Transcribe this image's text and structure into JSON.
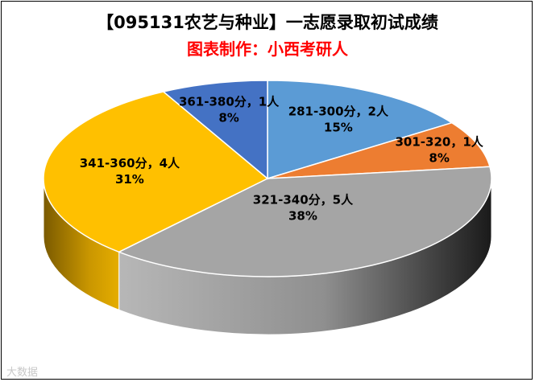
{
  "chart_data": {
    "type": "pie",
    "title": "【095131农艺与种业】一志愿录取初试成绩",
    "subtitle": "图表制作：小西考研人",
    "subtitle_color": "#ff0000",
    "slices": [
      {
        "label": "281-300分，2人",
        "value": 2,
        "percent": "15%",
        "color": "#5b9bd5"
      },
      {
        "label": "301-320，1人",
        "value": 1,
        "percent": "8%",
        "color": "#ed7d31"
      },
      {
        "label": "321-340分，5人",
        "value": 5,
        "percent": "38%",
        "color": "#a5a5a5"
      },
      {
        "label": "341-360分，4人",
        "value": 4,
        "percent": "31%",
        "color": "#ffc000"
      },
      {
        "label": "361-380分，1人",
        "value": 1,
        "percent": "8%",
        "color": "#4472c4"
      }
    ]
  },
  "watermark": "大数据"
}
